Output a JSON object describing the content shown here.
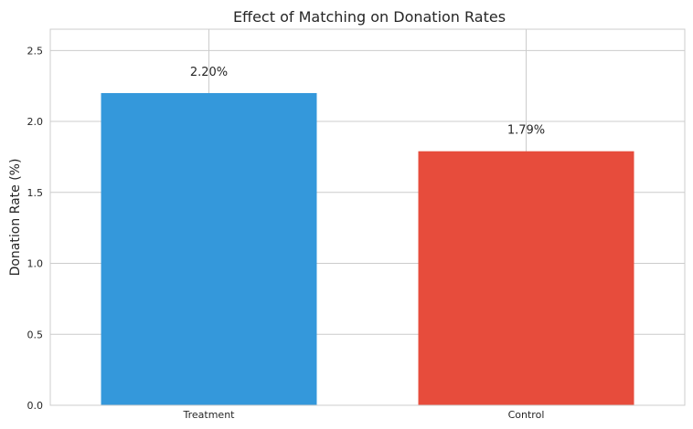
{
  "chart_data": {
    "type": "bar",
    "title": "Effect of Matching on Donation Rates",
    "xlabel": "",
    "ylabel": "Donation Rate (%)",
    "categories": [
      "Treatment",
      "Control"
    ],
    "values": [
      2.2,
      1.79
    ],
    "data_labels": [
      "2.20%",
      "1.79%"
    ],
    "colors": [
      "#3498db",
      "#e74c3c"
    ],
    "ylim": [
      0,
      2.65
    ],
    "yticks": [
      0.0,
      0.5,
      1.0,
      1.5,
      2.0,
      2.5
    ],
    "ytick_labels": [
      "0.0",
      "0.5",
      "1.0",
      "1.5",
      "2.0",
      "2.5"
    ],
    "grid": true
  }
}
